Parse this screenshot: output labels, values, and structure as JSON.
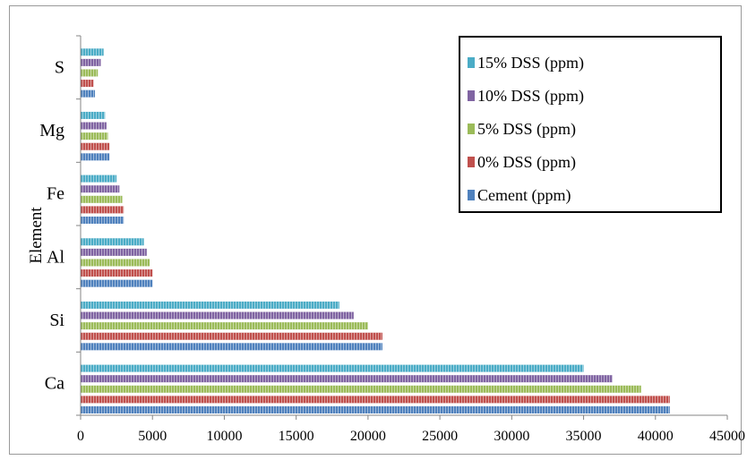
{
  "chart_data": {
    "type": "bar",
    "orientation": "horizontal",
    "categories": [
      "Ca",
      "Si",
      "Al",
      "Fe",
      "Mg",
      "S"
    ],
    "series": [
      {
        "name": "Cement (ppm)",
        "color": "#4f81bd",
        "values": [
          41000,
          21000,
          5000,
          3000,
          2000,
          1000
        ]
      },
      {
        "name": "0% DSS (ppm)",
        "color": "#c0504d",
        "values": [
          41000,
          21000,
          5000,
          3000,
          2000,
          900
        ]
      },
      {
        "name": "5% DSS (ppm)",
        "color": "#9bbb59",
        "values": [
          39000,
          20000,
          4800,
          2900,
          1900,
          1200
        ]
      },
      {
        "name": "10% DSS (ppm)",
        "color": "#8064a2",
        "values": [
          37000,
          19000,
          4600,
          2700,
          1800,
          1400
        ]
      },
      {
        "name": "15% DSS (ppm)",
        "color": "#4bacc6",
        "values": [
          35000,
          18000,
          4400,
          2500,
          1700,
          1600
        ]
      }
    ],
    "title": "",
    "xlabel": "",
    "ylabel": "Element",
    "xlim": [
      0,
      45000
    ],
    "xticks": [
      "0",
      "5000",
      "10000",
      "15000",
      "20000",
      "25000",
      "30000",
      "35000",
      "40000",
      "45000"
    ],
    "grid": false,
    "legend_position": "top-right",
    "legend_order": [
      "15% DSS (ppm)",
      "10% DSS (ppm)",
      "5% DSS (ppm)",
      "0% DSS (ppm)",
      "Cement (ppm)"
    ]
  }
}
